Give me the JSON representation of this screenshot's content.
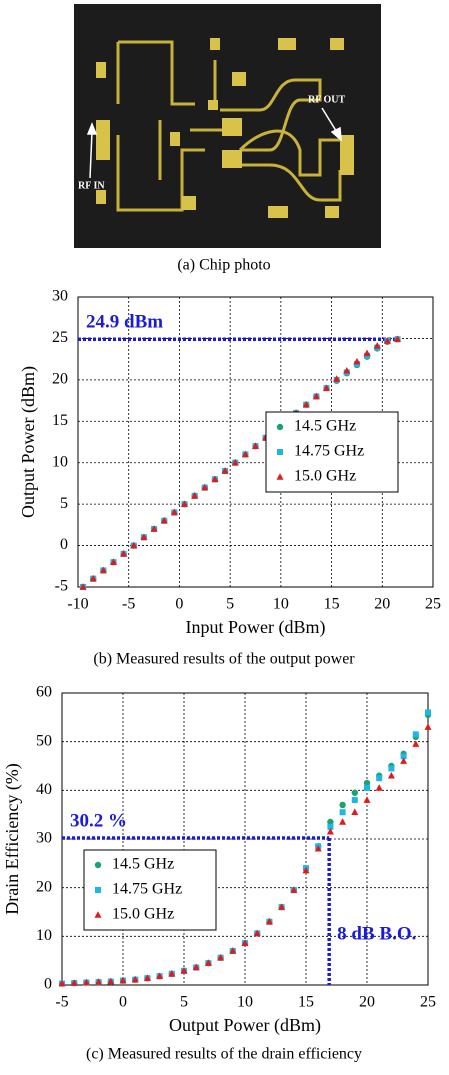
{
  "photo": {
    "caption": "(a) Chip photo",
    "labels": [
      "RF OUT",
      "RF IN"
    ]
  },
  "chart_data": [
    {
      "type": "scatter",
      "caption": "(b) Measured results of the output power",
      "xlabel": "Input Power (dBm)",
      "ylabel": "Output Power (dBm)",
      "xlim": [
        -10,
        25
      ],
      "xticks": [
        -10,
        -5,
        0,
        5,
        10,
        15,
        20,
        25
      ],
      "ylim": [
        -5,
        30
      ],
      "yticks": [
        -5,
        0,
        5,
        10,
        15,
        20,
        25,
        30
      ],
      "grid": true,
      "legend": "right",
      "x": [
        -9.5,
        -8.5,
        -7.5,
        -6.5,
        -5.5,
        -4.5,
        -3.5,
        -2.5,
        -1.5,
        -0.5,
        0.5,
        1.5,
        2.5,
        3.5,
        4.5,
        5.5,
        6.5,
        7.5,
        8.5,
        9.5,
        10.5,
        11.5,
        12.5,
        13.5,
        14.5,
        15.5,
        16.5,
        17.5,
        18.5,
        19.5,
        20.5,
        21.5
      ],
      "series": [
        {
          "name": "14.5 GHz",
          "color": "#1aa36f",
          "marker": "circle",
          "values": [
            -5,
            -4,
            -3,
            -2,
            -1,
            0,
            1,
            2,
            3,
            4,
            5,
            6,
            7,
            8,
            9,
            10,
            11,
            12,
            13,
            14,
            15,
            16,
            17,
            18,
            19,
            19.9,
            20.8,
            21.8,
            22.8,
            23.8,
            24.6,
            24.9
          ]
        },
        {
          "name": "14.75 GHz",
          "color": "#1cb6e8",
          "marker": "square",
          "values": [
            -5,
            -4,
            -3,
            -2,
            -1,
            0,
            1,
            2,
            3,
            4,
            5,
            6,
            7,
            8,
            9,
            10,
            11,
            12,
            13,
            14,
            15,
            16,
            17,
            18,
            19,
            20.0,
            20.9,
            21.9,
            22.9,
            23.9,
            24.7,
            24.9
          ]
        },
        {
          "name": "15.0 GHz",
          "color": "#e3191b",
          "marker": "triangle",
          "values": [
            -5,
            -4,
            -3,
            -2,
            -1,
            0,
            1,
            2,
            3,
            4,
            5,
            6,
            7,
            8,
            9,
            10,
            11,
            12,
            13,
            14,
            15,
            16,
            17,
            18,
            19,
            20.1,
            21.1,
            22.2,
            23.2,
            24.1,
            24.7,
            24.9
          ]
        }
      ],
      "annotations": [
        {
          "text": "24.9 dBm",
          "y": 24.9
        }
      ]
    },
    {
      "type": "scatter",
      "caption": "(c) Measured results of the drain efficiency",
      "xlabel": "Output Power (dBm)",
      "ylabel": "Drain Efficiency (%)",
      "xlim": [
        -5,
        25
      ],
      "xticks": [
        -5,
        0,
        5,
        10,
        15,
        20,
        25
      ],
      "ylim": [
        0,
        60
      ],
      "yticks": [
        0,
        10,
        20,
        30,
        40,
        50,
        60
      ],
      "grid": true,
      "legend": "left",
      "x": [
        -5,
        -4,
        -3,
        -2,
        -1,
        0,
        1,
        2,
        3,
        4,
        5,
        6,
        7,
        8,
        9,
        10,
        11,
        12,
        13,
        14,
        15,
        16,
        17,
        18,
        19,
        20,
        21,
        22,
        23,
        24,
        25
      ],
      "series": [
        {
          "name": "14.5 GHz",
          "color": "#1aa36f",
          "marker": "circle",
          "values": [
            0.3,
            0.4,
            0.5,
            0.6,
            0.7,
            0.9,
            1.1,
            1.4,
            1.8,
            2.3,
            2.9,
            3.6,
            4.5,
            5.6,
            7.0,
            8.6,
            10.6,
            13.0,
            16.0,
            19.5,
            24.0,
            28.5,
            33.5,
            37.0,
            39.5,
            41.5,
            43.0,
            45.0,
            47.5,
            51.0,
            55.5
          ]
        },
        {
          "name": "14.75 GHz",
          "color": "#1cb6e8",
          "marker": "square",
          "values": [
            0.3,
            0.4,
            0.5,
            0.6,
            0.7,
            0.9,
            1.1,
            1.4,
            1.8,
            2.3,
            2.9,
            3.6,
            4.5,
            5.6,
            7.0,
            8.6,
            10.6,
            13.0,
            16.0,
            19.5,
            24.0,
            28.5,
            32.5,
            35.5,
            38.0,
            40.5,
            42.5,
            44.5,
            47.0,
            51.5,
            56.0
          ]
        },
        {
          "name": "15.0 GHz",
          "color": "#e3191b",
          "marker": "triangle",
          "values": [
            0.3,
            0.4,
            0.5,
            0.6,
            0.7,
            0.9,
            1.1,
            1.4,
            1.8,
            2.3,
            2.9,
            3.6,
            4.5,
            5.6,
            7.0,
            8.6,
            10.6,
            13.0,
            16.0,
            19.5,
            23.5,
            28.0,
            31.5,
            33.5,
            35.5,
            38.0,
            40.5,
            43.0,
            46.0,
            49.5,
            53.0
          ]
        }
      ],
      "annotations": [
        {
          "text": "30.2 %",
          "y": 30.2
        },
        {
          "text": "8 dB B.O.",
          "x": 16.9
        }
      ]
    }
  ]
}
